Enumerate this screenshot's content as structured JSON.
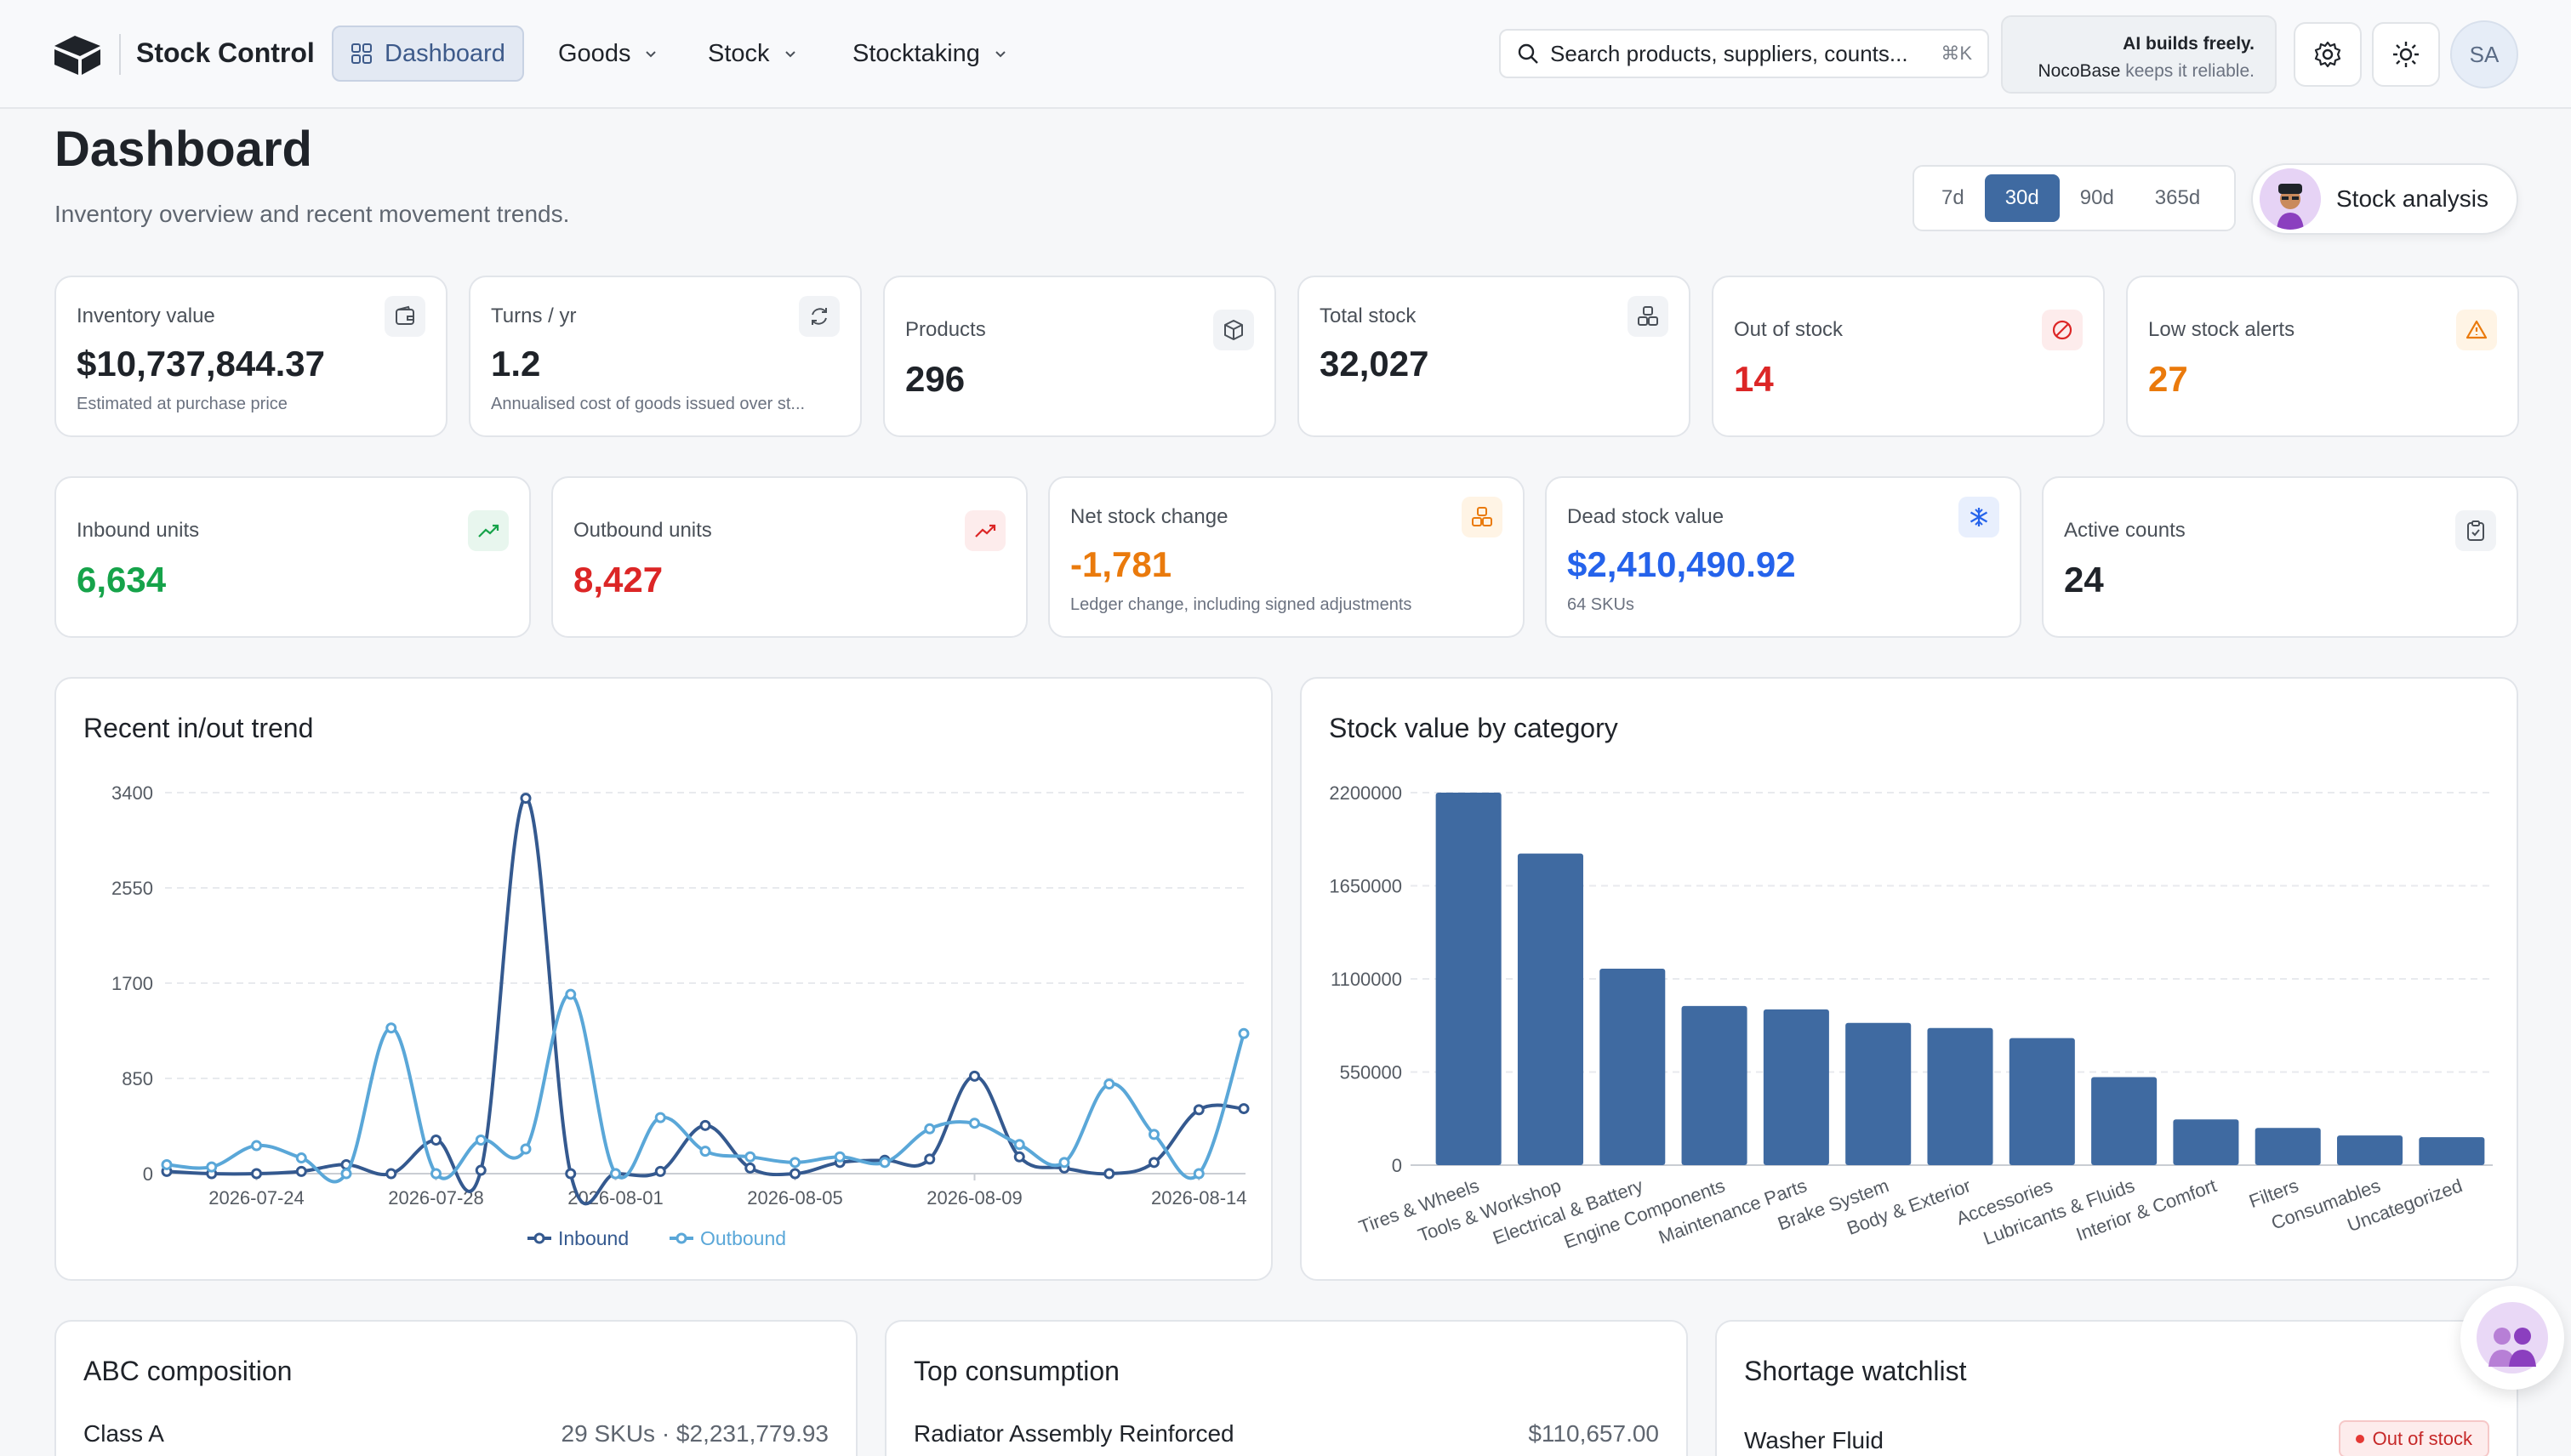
{
  "app": {
    "title": "Stock Control"
  },
  "nav": {
    "dashboard": "Dashboard",
    "goods": "Goods",
    "stock": "Stock",
    "stocktaking": "Stocktaking"
  },
  "search": {
    "placeholder": "Search products, suppliers, counts...",
    "shortcut": "⌘K"
  },
  "promo": {
    "line1": "AI builds freely.",
    "brand": "NocoBase",
    "line2_rest": " keeps it reliable."
  },
  "user": {
    "initials": "SA"
  },
  "page": {
    "title": "Dashboard",
    "subtitle": "Inventory overview and recent movement trends."
  },
  "range": {
    "options": [
      "7d",
      "30d",
      "90d",
      "365d"
    ],
    "selected": "30d"
  },
  "analysis_button": "Stock analysis",
  "stats_row1": [
    {
      "label": "Inventory value",
      "value": "$10,737,844.37",
      "note": "Estimated at purchase price",
      "icon": "wallet-icon"
    },
    {
      "label": "Turns / yr",
      "value": "1.2",
      "note": "Annualised cost of goods issued over st...",
      "icon": "refresh-icon"
    },
    {
      "label": "Products",
      "value": "296",
      "icon": "package-icon"
    },
    {
      "label": "Total stock",
      "value": "32,027",
      "icon": "boxes-icon"
    },
    {
      "label": "Out of stock",
      "value": "14",
      "icon": "ban-icon"
    },
    {
      "label": "Low stock alerts",
      "value": "27",
      "icon": "warning-icon"
    }
  ],
  "stats_row2": [
    {
      "label": "Inbound units",
      "value": "6,634",
      "icon": "trend-up-icon"
    },
    {
      "label": "Outbound units",
      "value": "8,427",
      "icon": "trend-up-red-icon"
    },
    {
      "label": "Net stock change",
      "value": "-1,781",
      "note": "Ledger change, including signed adjustments",
      "icon": "boxes-orange-icon"
    },
    {
      "label": "Dead stock value",
      "value": "$2,410,490.92",
      "note": "64 SKUs",
      "icon": "snowflake-icon"
    },
    {
      "label": "Active counts",
      "value": "24",
      "icon": "clipboard-icon"
    }
  ],
  "colors": {
    "green": "#16a34a",
    "red": "#dc2626",
    "orange": "#ea7a0c",
    "blue": "#2563eb",
    "inbound": "#34598f",
    "outbound": "#5aa7d8",
    "bar": "#3f6aa1"
  },
  "panels": {
    "trend_title": "Recent in/out trend",
    "category_title": "Stock value by category",
    "abc_title": "ABC composition",
    "top_title": "Top consumption",
    "shortage_title": "Shortage watchlist"
  },
  "abc": {
    "class": "Class A",
    "detail": "29 SKUs · $2,231,779.93"
  },
  "top": {
    "name": "Radiator Assembly Reinforced",
    "value": "$110,657.00"
  },
  "shortage": {
    "name": "Washer Fluid",
    "status": "Out of stock"
  },
  "chart_data": [
    {
      "type": "line",
      "title": "Recent in/out trend",
      "x_ticks": [
        "2026-07-24",
        "2026-07-28",
        "2026-08-01",
        "2026-08-05",
        "2026-08-09",
        "2026-08-14"
      ],
      "y_ticks": [
        0,
        850,
        1700,
        2550,
        3400
      ],
      "ylim": [
        0,
        3400
      ],
      "x": [
        "2026-07-22",
        "2026-07-23",
        "2026-07-24",
        "2026-07-25",
        "2026-07-26",
        "2026-07-27",
        "2026-07-28",
        "2026-07-29",
        "2026-07-30",
        "2026-07-31",
        "2026-08-01",
        "2026-08-02",
        "2026-08-03",
        "2026-08-04",
        "2026-08-05",
        "2026-08-06",
        "2026-08-07",
        "2026-08-08",
        "2026-08-09",
        "2026-08-10",
        "2026-08-11",
        "2026-08-12",
        "2026-08-13",
        "2026-08-14",
        "2026-08-15"
      ],
      "series": [
        {
          "name": "Inbound",
          "values": [
            20,
            0,
            0,
            20,
            80,
            0,
            300,
            30,
            3350,
            0,
            0,
            20,
            430,
            50,
            0,
            100,
            120,
            130,
            870,
            150,
            50,
            0,
            100,
            570,
            580
          ]
        },
        {
          "name": "Outbound",
          "values": [
            80,
            60,
            250,
            140,
            0,
            1300,
            0,
            300,
            220,
            1600,
            0,
            500,
            200,
            150,
            100,
            150,
            100,
            400,
            450,
            260,
            100,
            800,
            350,
            0,
            1250
          ]
        }
      ],
      "legend": "bottom"
    },
    {
      "type": "bar",
      "title": "Stock value by category",
      "categories": [
        "Tires & Wheels",
        "Tools & Workshop",
        "Electrical & Battery",
        "Engine Components",
        "Maintenance Parts",
        "Brake System",
        "Body & Exterior",
        "Accessories",
        "Lubricants & Fluids",
        "Interior & Comfort",
        "Filters",
        "Consumables",
        "Uncategorized"
      ],
      "values": [
        2200000,
        1840000,
        1160000,
        940000,
        920000,
        840000,
        810000,
        750000,
        520000,
        270000,
        220000,
        175000,
        165000
      ],
      "y_ticks": [
        0,
        550000,
        1100000,
        1650000,
        2200000
      ],
      "ylim": [
        0,
        2200000
      ]
    }
  ]
}
